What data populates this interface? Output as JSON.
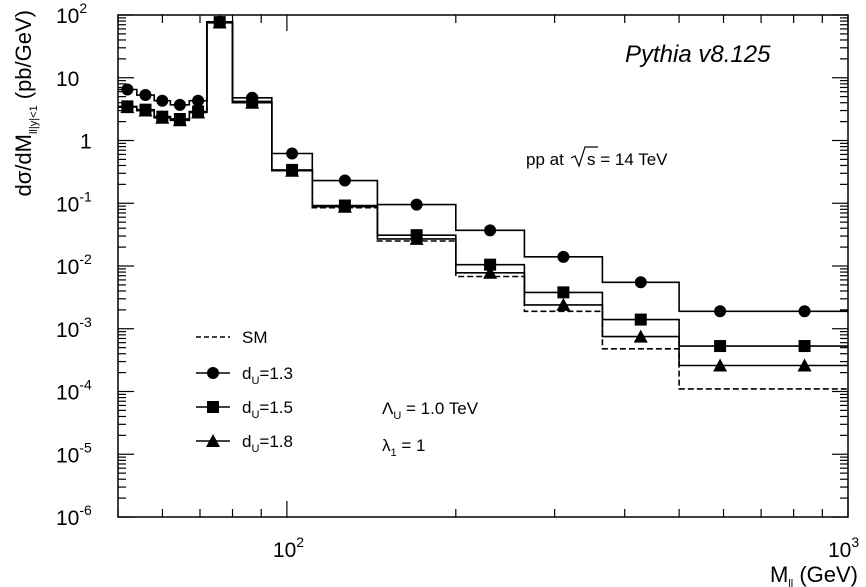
{
  "chart_data": {
    "type": "line",
    "title": "",
    "xlabel": "M",
    "xlabel_sub": "ll",
    "xlabel_unit": " (GeV)",
    "ylabel": "dσ/dM",
    "ylabel_sub": "ll|y|<1",
    "ylabel_unit": " (pb/GeV)",
    "x_scale": "log",
    "y_scale": "log",
    "xlim": [
      50,
      1000
    ],
    "ylim": [
      1e-06,
      100
    ],
    "x_tick_labels": [
      {
        "value": 100,
        "base": "10",
        "exp": "2"
      },
      {
        "value": 1000,
        "base": "10",
        "exp": "3"
      }
    ],
    "y_tick_labels": [
      {
        "value": 100,
        "base": "10",
        "exp": "2"
      },
      {
        "value": 10,
        "base": "10",
        "exp": ""
      },
      {
        "value": 1,
        "base": "1",
        "exp": ""
      },
      {
        "value": 0.1,
        "base": "10",
        "exp": "-1"
      },
      {
        "value": 0.01,
        "base": "10",
        "exp": "-2"
      },
      {
        "value": 0.001,
        "base": "10",
        "exp": "-3"
      },
      {
        "value": 0.0001,
        "base": "10",
        "exp": "-4"
      },
      {
        "value": 1e-05,
        "base": "10",
        "exp": "-5"
      },
      {
        "value": 1e-06,
        "base": "10",
        "exp": "-6"
      }
    ],
    "bin_edges": [
      50,
      54,
      58,
      62,
      67,
      72,
      80,
      94,
      111,
      145,
      200,
      265,
      365,
      500,
      700,
      1000
    ],
    "series": [
      {
        "name": "SM",
        "style": "dashed",
        "marker": "none",
        "values": [
          3.4,
          3.0,
          2.4,
          2.2,
          2.8,
          75,
          4.0,
          0.33,
          0.085,
          0.025,
          0.0068,
          0.0019,
          0.00048,
          0.00011,
          0.00011
        ]
      },
      {
        "name": "d_U=1.3",
        "style": "solid",
        "marker": "circle",
        "values": [
          6.5,
          5.3,
          4.3,
          3.7,
          4.3,
          78,
          4.8,
          0.62,
          0.23,
          0.095,
          0.037,
          0.014,
          0.0055,
          0.0019,
          0.0019
        ]
      },
      {
        "name": "d_U=1.5",
        "style": "solid",
        "marker": "square",
        "values": [
          3.5,
          3.1,
          2.4,
          2.2,
          2.9,
          77,
          4.2,
          0.34,
          0.092,
          0.031,
          0.0105,
          0.0038,
          0.0014,
          0.00053,
          0.00053
        ]
      },
      {
        "name": "d_U=1.8",
        "style": "solid",
        "marker": "triangle",
        "values": [
          3.4,
          3.0,
          2.3,
          2.1,
          2.8,
          76,
          4.0,
          0.33,
          0.088,
          0.027,
          0.0078,
          0.0024,
          0.00075,
          0.00026,
          0.00026
        ]
      }
    ],
    "legend": {
      "placement": "bottom-left",
      "entries": [
        {
          "label": "SM",
          "sub": ""
        },
        {
          "label_base": "d",
          "sub": "U",
          "label_rest": "=1.3"
        },
        {
          "label_base": "d",
          "sub": "U",
          "label_rest": "=1.5"
        },
        {
          "label_base": "d",
          "sub": "U",
          "label_rest": "=1.8"
        }
      ]
    },
    "annotations": {
      "generator": "Pythia v8.125",
      "process_prefix": "pp at",
      "process_root": "s",
      "process_suffix": " = 14 TeV",
      "lambda_base": "Λ",
      "lambda_sub": "U",
      "lambda_rest": " = 1.0 TeV",
      "coupling_base": "λ",
      "coupling_sub": "1",
      "coupling_rest": " = 1"
    },
    "grid": false
  }
}
